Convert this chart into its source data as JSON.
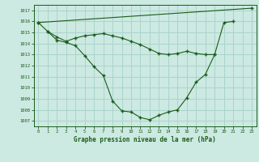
{
  "title": "Graphe pression niveau de la mer (hPa)",
  "background_color": "#cce9e2",
  "grid_color": "#aad4cc",
  "line_color": "#1a5c1a",
  "x_ticks": [
    0,
    1,
    2,
    3,
    4,
    5,
    6,
    7,
    8,
    9,
    10,
    11,
    12,
    13,
    14,
    15,
    16,
    17,
    18,
    19,
    20,
    21,
    22,
    23
  ],
  "y_ticks": [
    1007,
    1008,
    1009,
    1010,
    1011,
    1012,
    1013,
    1014,
    1015,
    1016,
    1017
  ],
  "ylim": [
    1006.5,
    1017.5
  ],
  "xlim": [
    -0.5,
    23.5
  ],
  "line1_x": [
    0,
    1,
    2,
    3,
    4,
    5,
    6,
    7,
    8,
    9,
    10,
    11,
    12,
    13,
    14,
    15,
    16,
    17,
    18,
    19,
    20,
    21
  ],
  "line1_y": [
    1015.9,
    1015.1,
    1014.3,
    1014.1,
    1013.8,
    1012.9,
    1011.9,
    1011.1,
    1008.8,
    1007.9,
    1007.8,
    1007.3,
    1007.1,
    1007.5,
    1007.8,
    1008.0,
    1009.1,
    1010.5,
    1011.2,
    1013.0,
    1015.9,
    1016.0
  ],
  "line2_x": [
    1,
    2,
    3,
    4,
    5,
    6,
    7,
    8,
    9,
    10,
    11,
    12,
    13,
    14,
    15,
    16,
    17,
    18,
    19
  ],
  "line2_y": [
    1015.1,
    1014.6,
    1014.2,
    1014.5,
    1014.7,
    1014.8,
    1014.9,
    1014.7,
    1014.5,
    1014.2,
    1013.9,
    1013.5,
    1013.1,
    1013.0,
    1013.1,
    1013.3,
    1013.1,
    1013.0,
    1013.0
  ],
  "line3_x": [
    0,
    23
  ],
  "line3_y": [
    1015.9,
    1017.2
  ]
}
